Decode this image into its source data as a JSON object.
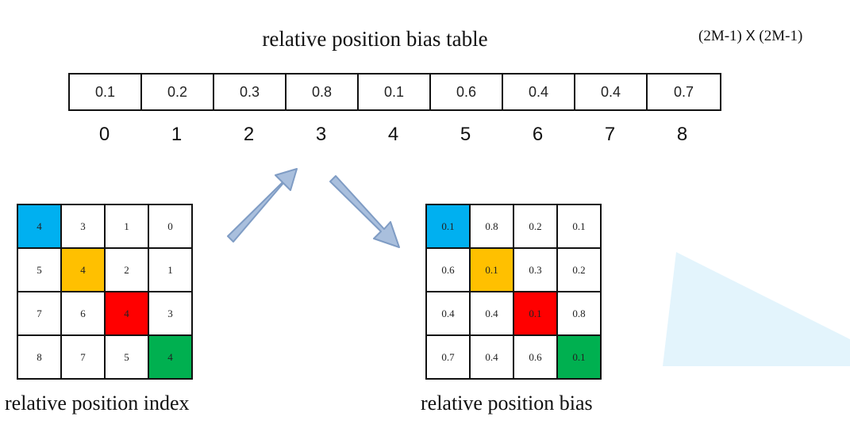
{
  "header": {
    "title": "relative position bias table",
    "dims_left": "(2M-1)",
    "dims_x": "X",
    "dims_right": "(2M-1)"
  },
  "bias_table": {
    "values": [
      "0.1",
      "0.2",
      "0.3",
      "0.8",
      "0.1",
      "0.6",
      "0.4",
      "0.4",
      "0.7"
    ],
    "indices": [
      "0",
      "1",
      "2",
      "3",
      "4",
      "5",
      "6",
      "7",
      "8"
    ]
  },
  "index_grid": {
    "caption": "relative position index",
    "cells": [
      [
        "4",
        "3",
        "1",
        "0"
      ],
      [
        "5",
        "4",
        "2",
        "1"
      ],
      [
        "7",
        "6",
        "4",
        "3"
      ],
      [
        "8",
        "7",
        "5",
        "4"
      ]
    ]
  },
  "bias_grid": {
    "caption": "relative position bias",
    "cells": [
      [
        "0.1",
        "0.8",
        "0.2",
        "0.1"
      ],
      [
        "0.6",
        "0.1",
        "0.3",
        "0.2"
      ],
      [
        "0.4",
        "0.4",
        "0.1",
        "0.8"
      ],
      [
        "0.7",
        "0.4",
        "0.6",
        "0.1"
      ]
    ]
  },
  "colors": {
    "diag_0": "#00b0f0",
    "diag_1": "#ffc000",
    "diag_2": "#ff0000",
    "diag_3": "#00b050",
    "arrow_fill": "#a9bfdd",
    "arrow_stroke": "#7f9cc4",
    "watermark": "#e3f4fc"
  }
}
